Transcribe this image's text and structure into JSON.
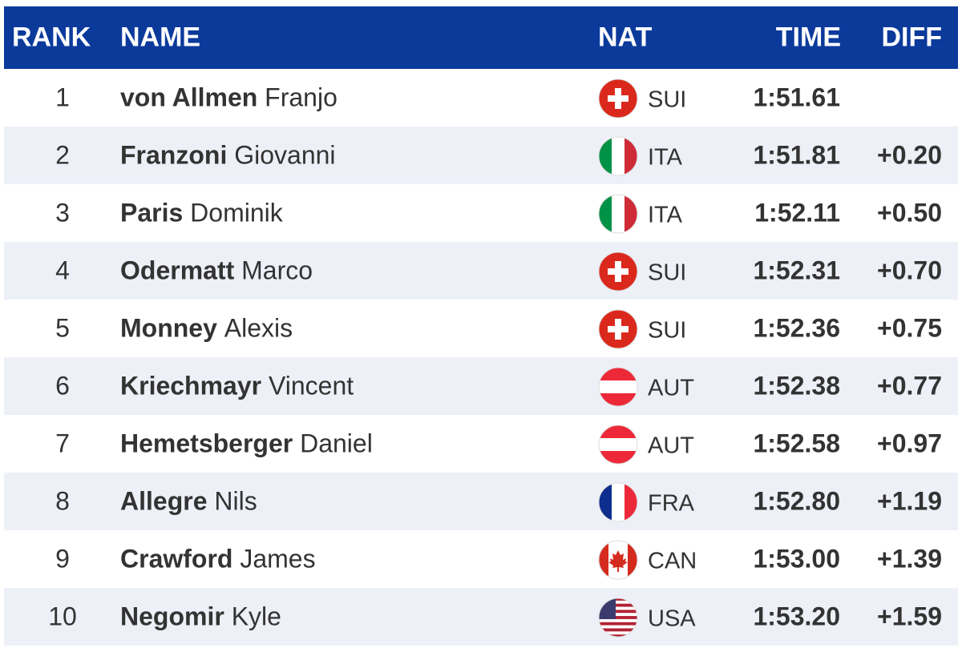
{
  "table": {
    "headers": [
      "RANK",
      "NAME",
      "NAT",
      "TIME",
      "DIFF"
    ],
    "rows": [
      {
        "rank": 1,
        "surname": "von Allmen",
        "given": "Franjo",
        "nat": "SUI",
        "time": "1:51.61"
      },
      {
        "rank": 2,
        "surname": "Franzoni",
        "given": "Giovanni",
        "nat": "ITA",
        "time": "1:51.81",
        "diff": "+0.20"
      },
      {
        "rank": 3,
        "surname": "Paris",
        "given": "Dominik",
        "nat": "ITA",
        "time": "1:52.11",
        "diff": "+0.50"
      },
      {
        "rank": 4,
        "surname": "Odermatt",
        "given": "Marco",
        "nat": "SUI",
        "time": "1:52.31",
        "diff": "+0.70"
      },
      {
        "rank": 5,
        "surname": "Monney",
        "given": "Alexis",
        "nat": "SUI",
        "time": "1:52.36",
        "diff": "+0.75"
      },
      {
        "rank": 6,
        "surname": "Kriechmayr",
        "given": "Vincent",
        "nat": "AUT",
        "time": "1:52.38",
        "diff": "+0.77"
      },
      {
        "rank": 7,
        "surname": "Hemetsberger",
        "given": "Daniel",
        "nat": "AUT",
        "time": "1:52.58",
        "diff": "+0.97"
      },
      {
        "rank": 8,
        "surname": "Allegre",
        "given": "Nils",
        "nat": "FRA",
        "time": "1:52.80",
        "diff": "+1.19"
      },
      {
        "rank": 9,
        "surname": "Crawford",
        "given": "James",
        "nat": "CAN",
        "time": "1:53.00",
        "diff": "+1.39"
      },
      {
        "rank": 10,
        "surname": "Negomir",
        "given": "Kyle",
        "nat": "USA",
        "time": "1:53.20",
        "diff": "+1.59"
      }
    ]
  }
}
